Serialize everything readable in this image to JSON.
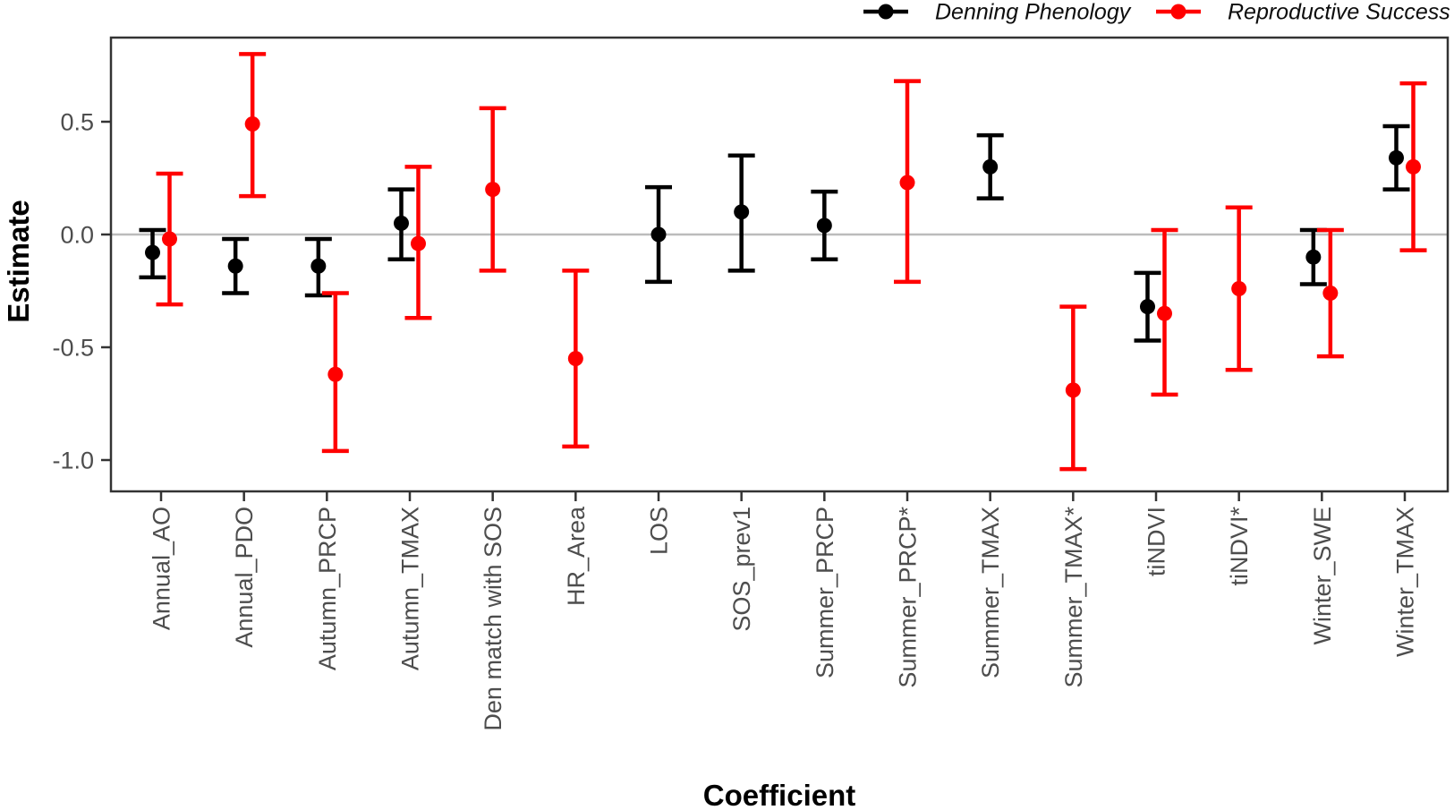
{
  "chart_data": {
    "type": "scatter",
    "subtype": "pointrange-errorbar",
    "title": "",
    "xlabel": "Coefficient",
    "ylabel": "Estimate",
    "categories": [
      "Annual_AO",
      "Annual_PDO",
      "Autumn_PRCP",
      "Autumn_TMAX",
      "Den match with SOS",
      "HR_Area",
      "LOS",
      "SOS_prev1",
      "Summer_PRCP",
      "Summer_PRCP*",
      "Summer_TMAX",
      "Summer_TMAX*",
      "tiNDVI",
      "tiNDVI*",
      "Winter_SWE",
      "Winter_TMAX"
    ],
    "y_ticks": [
      0.5,
      0.0,
      -0.5,
      -1.0
    ],
    "ylim": [
      -1.14,
      0.87
    ],
    "reference_line": 0.0,
    "grid": false,
    "legend_position": "top-right",
    "x_label_rotation": 90,
    "series": [
      {
        "name": "Denning Phenology",
        "color": "#000000",
        "points": [
          {
            "category": "Annual_AO",
            "estimate": -0.08,
            "lower": -0.19,
            "upper": 0.02
          },
          {
            "category": "Annual_PDO",
            "estimate": -0.14,
            "lower": -0.26,
            "upper": -0.02
          },
          {
            "category": "Autumn_PRCP",
            "estimate": -0.14,
            "lower": -0.27,
            "upper": -0.02
          },
          {
            "category": "Autumn_TMAX",
            "estimate": 0.05,
            "lower": -0.11,
            "upper": 0.2
          },
          {
            "category": "LOS",
            "estimate": 0.0,
            "lower": -0.21,
            "upper": 0.21
          },
          {
            "category": "SOS_prev1",
            "estimate": 0.1,
            "lower": -0.16,
            "upper": 0.35
          },
          {
            "category": "Summer_PRCP",
            "estimate": 0.04,
            "lower": -0.11,
            "upper": 0.19
          },
          {
            "category": "Summer_TMAX",
            "estimate": 0.3,
            "lower": 0.16,
            "upper": 0.44
          },
          {
            "category": "tiNDVI",
            "estimate": -0.32,
            "lower": -0.47,
            "upper": -0.17
          },
          {
            "category": "Winter_SWE",
            "estimate": -0.1,
            "lower": -0.22,
            "upper": 0.02
          },
          {
            "category": "Winter_TMAX",
            "estimate": 0.34,
            "lower": 0.2,
            "upper": 0.48
          }
        ]
      },
      {
        "name": "Reproductive Success",
        "color": "#FF0000",
        "points": [
          {
            "category": "Annual_AO",
            "estimate": -0.02,
            "lower": -0.31,
            "upper": 0.27
          },
          {
            "category": "Annual_PDO",
            "estimate": 0.49,
            "lower": 0.17,
            "upper": 0.8
          },
          {
            "category": "Autumn_PRCP",
            "estimate": -0.62,
            "lower": -0.96,
            "upper": -0.26
          },
          {
            "category": "Autumn_TMAX",
            "estimate": -0.04,
            "lower": -0.37,
            "upper": 0.3
          },
          {
            "category": "Den match with SOS",
            "estimate": 0.2,
            "lower": -0.16,
            "upper": 0.56
          },
          {
            "category": "HR_Area",
            "estimate": -0.55,
            "lower": -0.94,
            "upper": -0.16
          },
          {
            "category": "Summer_PRCP*",
            "estimate": 0.23,
            "lower": -0.21,
            "upper": 0.68
          },
          {
            "category": "Summer_TMAX*",
            "estimate": -0.69,
            "lower": -1.04,
            "upper": -0.32
          },
          {
            "category": "tiNDVI",
            "estimate": -0.35,
            "lower": -0.71,
            "upper": 0.02
          },
          {
            "category": "tiNDVI*",
            "estimate": -0.24,
            "lower": -0.6,
            "upper": 0.12
          },
          {
            "category": "Winter_SWE",
            "estimate": -0.26,
            "lower": -0.54,
            "upper": 0.02
          },
          {
            "category": "Winter_TMAX",
            "estimate": 0.3,
            "lower": -0.07,
            "upper": 0.67
          }
        ]
      }
    ]
  },
  "legend": {
    "items": [
      {
        "label": "Denning Phenology",
        "color": "#000000"
      },
      {
        "label": "Reproductive Success",
        "color": "#FF0000"
      }
    ]
  }
}
